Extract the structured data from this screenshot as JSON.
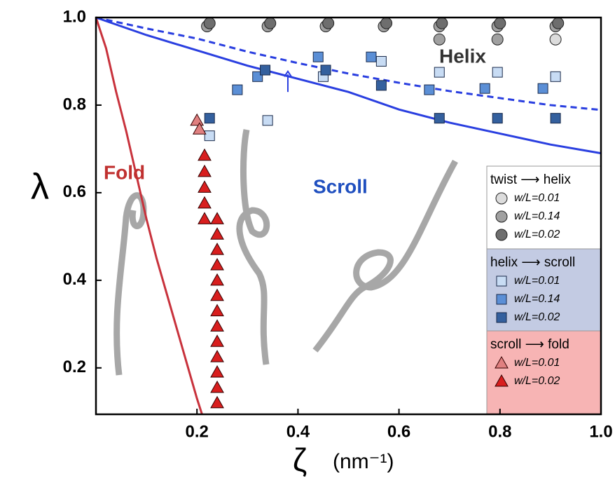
{
  "chart_data": {
    "type": "scatter",
    "x_label": "ζ",
    "x_unit": "(nm⁻¹)",
    "y_label": "λ",
    "xlim": [
      0,
      1
    ],
    "ylim": [
      0.094,
      1
    ],
    "xticks": [
      0.2,
      0.4,
      0.6,
      0.8,
      {
        "value": 1,
        "label": "1.0"
      }
    ],
    "yticks": [
      0.2,
      0.4,
      0.6,
      0.8,
      {
        "value": 1,
        "label": "1.0"
      }
    ],
    "annotations": [
      {
        "text": "Fold",
        "color": "#c0302f"
      },
      {
        "text": "Scroll",
        "color": "#1f4fbf"
      },
      {
        "text": "Helix",
        "color": "#333333"
      }
    ],
    "lines": [
      {
        "color": "#c8323c",
        "dashed": false,
        "x": [
          0,
          0.02,
          0.04,
          0.06,
          0.08,
          0.1,
          0.12,
          0.14,
          0.16,
          0.18,
          0.2,
          0.21
        ],
        "y": [
          1,
          0.93,
          0.83,
          0.74,
          0.64,
          0.54,
          0.45,
          0.37,
          0.29,
          0.21,
          0.13,
          0.094
        ]
      },
      {
        "color": "#2a3fe0",
        "dashed": false,
        "x": [
          0,
          0.1,
          0.2,
          0.3,
          0.4,
          0.5,
          0.6,
          0.7,
          0.8,
          0.9,
          1
        ],
        "y": [
          1,
          0.96,
          0.925,
          0.89,
          0.86,
          0.83,
          0.79,
          0.76,
          0.735,
          0.71,
          0.69
        ]
      },
      {
        "color": "#2a3fe0",
        "dashed": true,
        "x": [
          0,
          0.1,
          0.2,
          0.3,
          0.4,
          0.5,
          0.6,
          0.7,
          0.8,
          0.9,
          1
        ],
        "y": [
          1,
          0.975,
          0.952,
          0.922,
          0.896,
          0.872,
          0.851,
          0.832,
          0.816,
          0.8,
          0.789
        ]
      }
    ],
    "legend_groups": [
      {
        "title": "twist ⟶ helix",
        "background": "#ffffff",
        "series": [
          {
            "name": "w/L=0.01",
            "marker": "circle",
            "color": "#dcdcdc",
            "x": [
              0.91
            ],
            "y": [
              0.95
            ]
          },
          {
            "name": "w/L=0.14",
            "marker": "circle",
            "color": "#a0a0a0",
            "x": [
              0.22,
              0.34,
              0.455,
              0.57,
              0.68,
              0.795,
              0.91,
              0.68,
              0.795
            ],
            "y": [
              0.98,
              0.98,
              0.98,
              0.98,
              0.98,
              0.98,
              0.98,
              0.95,
              0.95
            ]
          },
          {
            "name": "w/L=0.02",
            "marker": "circle",
            "color": "#6e6e6e",
            "x": [
              0.225,
              0.345,
              0.46,
              0.575,
              0.685,
              0.8,
              0.915
            ],
            "y": [
              0.987,
              0.987,
              0.987,
              0.987,
              0.987,
              0.987,
              0.987
            ]
          }
        ]
      },
      {
        "title": "helix ⟶ scroll",
        "background": "#c3cbe3",
        "series": [
          {
            "name": "w/L=0.01",
            "marker": "square",
            "color": "#c8dcf4",
            "x": [
              0.225,
              0.34,
              0.45,
              0.565,
              0.68,
              0.795,
              0.91
            ],
            "y": [
              0.73,
              0.765,
              0.865,
              0.9,
              0.875,
              0.875,
              0.865
            ]
          },
          {
            "name": "w/L=0.14",
            "marker": "square",
            "color": "#5b8fd6",
            "x": [
              0.28,
              0.32,
              0.44,
              0.545,
              0.66,
              0.77,
              0.885
            ],
            "y": [
              0.835,
              0.865,
              0.91,
              0.91,
              0.835,
              0.838,
              0.838
            ]
          },
          {
            "name": "w/L=0.02",
            "marker": "square",
            "color": "#34609e",
            "x": [
              0.225,
              0.335,
              0.455,
              0.565,
              0.68,
              0.795,
              0.91
            ],
            "y": [
              0.77,
              0.88,
              0.88,
              0.845,
              0.77,
              0.77,
              0.77
            ]
          }
        ]
      },
      {
        "title": "scroll ⟶ fold",
        "background": "#f7b4b4",
        "series": [
          {
            "name": "w/L=0.01",
            "marker": "triangle",
            "color": "#e08080",
            "x": [
              0.2,
              0.205
            ],
            "y": [
              0.765,
              0.745
            ]
          },
          {
            "name": "w/L=0.02",
            "marker": "triangle",
            "color": "#d81e1e",
            "x": [
              0.215,
              0.215,
              0.215,
              0.215,
              0.215,
              0.24,
              0.24,
              0.24,
              0.24,
              0.24,
              0.24,
              0.24,
              0.24,
              0.24,
              0.24,
              0.24,
              0.24,
              0.24
            ],
            "y": [
              0.685,
              0.648,
              0.612,
              0.576,
              0.54,
              0.54,
              0.505,
              0.47,
              0.435,
              0.4,
              0.365,
              0.33,
              0.295,
              0.26,
              0.225,
              0.19,
              0.155,
              0.12
            ]
          }
        ]
      }
    ]
  }
}
